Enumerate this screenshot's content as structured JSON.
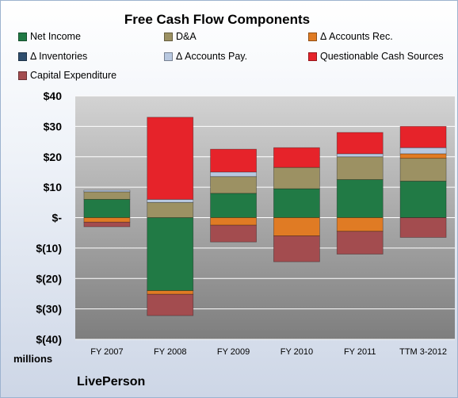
{
  "chart_data": {
    "type": "bar",
    "stacked": true,
    "title": "Free Cash Flow Components",
    "categories": [
      "FY 2007",
      "FY 2008",
      "FY 2009",
      "FY 2010",
      "FY 2011",
      "TTM 3-2012"
    ],
    "ylim": [
      -40,
      40
    ],
    "yticks": [
      40,
      30,
      20,
      10,
      0,
      -10,
      -20,
      -30,
      -40
    ],
    "ytick_labels": [
      "$40",
      "$30",
      "$20",
      "$10",
      "$-",
      "$(10)",
      "$(20)",
      "$(30)",
      "$(40)"
    ],
    "ylabel_unit": "millions",
    "legend_placement": "top",
    "series": [
      {
        "name": "Net Income",
        "color": "#217a45",
        "values": [
          6,
          -24,
          8,
          9.5,
          12.5,
          12
        ]
      },
      {
        "name": "D&A",
        "color": "#9c9163",
        "values": [
          2.5,
          5,
          5.5,
          7,
          7.5,
          7.5
        ]
      },
      {
        "name": "Δ Accounts Rec.",
        "color": "#e07b24",
        "values": [
          -1.5,
          -1.2,
          -2.5,
          -6,
          -4.5,
          1.5
        ]
      },
      {
        "name": "Δ Inventories",
        "color": "#2f4e6e",
        "values": [
          0,
          0,
          0,
          0,
          0,
          0
        ]
      },
      {
        "name": "Δ Accounts Pay.",
        "color": "#b8c8e0",
        "values": [
          0.5,
          1,
          1.5,
          0,
          1,
          2
        ]
      },
      {
        "name": "Questionable Cash Sources",
        "color": "#e6232a",
        "values": [
          0,
          27,
          7.5,
          6.5,
          7,
          7
        ]
      },
      {
        "name": "Capital Expenditure",
        "color": "#a34c4f",
        "values": [
          -1.5,
          -7,
          -5.5,
          -8.5,
          -7.5,
          -6.5
        ]
      }
    ]
  },
  "footer": {
    "unit": "millions",
    "company": "LivePerson"
  }
}
